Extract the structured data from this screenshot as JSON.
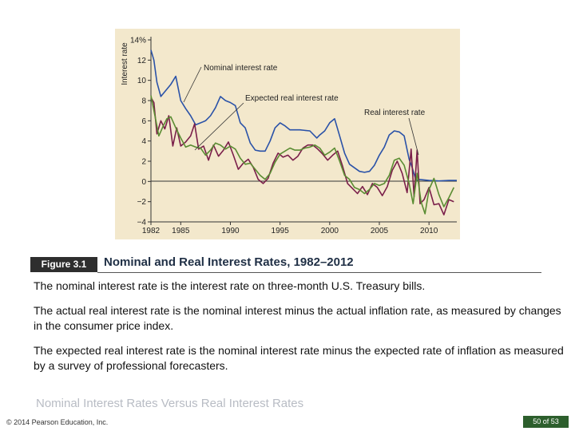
{
  "figure": {
    "label": "Figure 3.1",
    "title": "Nominal and Real Interest Rates, 1982–2012",
    "paragraphs": [
      "The nominal interest rate is the interest rate on three-month U.S. Treasury bills.",
      "The actual real interest rate is the nominal interest minus the actual inflation rate, as measured by changes in the consumer price index.",
      "The expected real interest rate is the nominal interest rate minus the expected rate of inflation as measured by a survey of professional forecasters."
    ]
  },
  "slide": {
    "subtitle": "Nominal Interest Rates Versus Real Interest Rates",
    "copyright": "© 2014 Pearson Education, Inc.",
    "page": "50 of 53"
  },
  "chart_data": {
    "type": "line",
    "ylabel": "Interest rate",
    "ylim": [
      -4,
      14
    ],
    "xlim": [
      1982,
      2012.8
    ],
    "y_ticks": [
      "−4",
      "−2",
      "0",
      "2",
      "4",
      "6",
      "8",
      "10",
      "12",
      "14%"
    ],
    "y_tick_values": [
      -4,
      -2,
      0,
      2,
      4,
      6,
      8,
      10,
      12,
      14
    ],
    "x_ticks": [
      "1982",
      "1985",
      "1990",
      "1995",
      "2000",
      "2005",
      "2010"
    ],
    "x_tick_values": [
      1982,
      1985,
      1990,
      1995,
      2000,
      2005,
      2010
    ],
    "grid": false,
    "background": "#f3e8cc",
    "annotations": [
      "Nominal interest rate",
      "Expected real interest rate",
      "Real interest rate"
    ],
    "series": [
      {
        "name": "Nominal interest rate",
        "color": "#2a52a8",
        "x": [
          1982,
          1982.3,
          1982.6,
          1983,
          1983.5,
          1984,
          1984.5,
          1985,
          1985.5,
          1986,
          1986.5,
          1987,
          1987.5,
          1988,
          1988.5,
          1989,
          1989.5,
          1990,
          1990.5,
          1991,
          1991.5,
          1992,
          1992.5,
          1993,
          1993.5,
          1994,
          1994.5,
          1995,
          1995.5,
          1996,
          1997,
          1998,
          1998.7,
          1999,
          1999.5,
          2000,
          2000.5,
          2001,
          2001.5,
          2002,
          2003,
          2003.5,
          2004,
          2004.5,
          2005,
          2005.5,
          2006,
          2006.5,
          2007,
          2007.5,
          2008,
          2008.3,
          2008.7,
          2009,
          2010,
          2011,
          2012,
          2012.8
        ],
        "y": [
          13,
          12,
          9.8,
          8.4,
          9,
          9.6,
          10.4,
          8,
          7.2,
          6.5,
          5.6,
          5.8,
          6,
          6.5,
          7.3,
          8.4,
          8,
          7.8,
          7.5,
          5.8,
          5.3,
          3.8,
          3.1,
          3,
          3,
          4,
          5.3,
          5.8,
          5.5,
          5.1,
          5.1,
          5,
          4.3,
          4.6,
          5,
          5.8,
          6.2,
          4.5,
          2.8,
          1.7,
          1,
          0.9,
          1,
          1.6,
          2.6,
          3.4,
          4.6,
          5,
          4.9,
          4.5,
          2.2,
          1.4,
          0.1,
          0.2,
          0.1,
          0.05,
          0.1,
          0.1
        ]
      },
      {
        "name": "Real interest rate",
        "color": "#7a1f4a",
        "x": [
          1982,
          1982.3,
          1982.6,
          1983,
          1983.4,
          1983.8,
          1984.2,
          1984.6,
          1985,
          1985.5,
          1986,
          1986.4,
          1986.8,
          1987.3,
          1987.8,
          1988.3,
          1988.8,
          1989.3,
          1989.8,
          1990.3,
          1990.8,
          1991.3,
          1991.8,
          1992.3,
          1992.8,
          1993.3,
          1993.8,
          1994.3,
          1994.8,
          1995.3,
          1995.8,
          1996.3,
          1996.8,
          1997.3,
          1997.8,
          1998.3,
          1998.8,
          1999.3,
          1999.8,
          2000.3,
          2000.8,
          2001.3,
          2001.8,
          2002.3,
          2002.8,
          2003.3,
          2003.8,
          2004.3,
          2004.8,
          2005.3,
          2005.8,
          2006.3,
          2006.8,
          2007.3,
          2007.8,
          2008.2,
          2008.5,
          2008.8,
          2009.1,
          2009.5,
          2010,
          2010.5,
          2011,
          2011.5,
          2012,
          2012.5
        ],
        "y": [
          8.3,
          7.8,
          4.7,
          6,
          5.2,
          6.5,
          3.5,
          5.3,
          3.5,
          3.9,
          4.5,
          5.7,
          3.2,
          3.5,
          2.1,
          3.6,
          2.5,
          3.1,
          3.9,
          2.6,
          1.2,
          1.8,
          2.2,
          1.4,
          0.2,
          -0.2,
          0.3,
          1.8,
          2.8,
          2.4,
          2.6,
          2.1,
          2.5,
          3.3,
          3.6,
          3.6,
          3.2,
          2.7,
          2.1,
          2.6,
          3,
          1.5,
          -0.2,
          -0.7,
          -1.2,
          -0.5,
          -1.3,
          -0.2,
          -0.6,
          -1.4,
          -0.5,
          1.1,
          2,
          0.8,
          -1.1,
          3.2,
          -1.5,
          3.1,
          -2.2,
          -1.8,
          -0.6,
          -2.3,
          -2.2,
          -3.3,
          -1.8,
          -2
        ]
      },
      {
        "name": "Expected real interest rate",
        "color": "#5a8c32",
        "x": [
          1982,
          1982.4,
          1982.8,
          1983.2,
          1983.6,
          1984,
          1984.5,
          1985,
          1985.5,
          1986,
          1986.5,
          1987,
          1987.5,
          1988,
          1988.5,
          1989,
          1989.5,
          1990,
          1990.5,
          1991,
          1991.5,
          1992,
          1992.5,
          1993,
          1993.5,
          1994,
          1994.5,
          1995,
          1995.5,
          1996,
          1996.5,
          1997,
          1997.5,
          1998,
          1998.5,
          1999,
          1999.5,
          2000,
          2000.5,
          2001,
          2001.5,
          2002,
          2002.5,
          2003,
          2003.5,
          2004,
          2004.5,
          2005,
          2005.5,
          2006,
          2006.5,
          2007,
          2007.5,
          2008,
          2008.4,
          2008.8,
          2009.2,
          2009.6,
          2010,
          2010.5,
          2011,
          2011.5,
          2012,
          2012.5
        ],
        "y": [
          8.5,
          6.5,
          4.5,
          5.4,
          6.2,
          6.4,
          5.3,
          4.3,
          3.4,
          3.6,
          3.4,
          3.3,
          2.6,
          3.1,
          3.8,
          3.6,
          3.2,
          3.5,
          3.2,
          2.3,
          1.7,
          1.8,
          1.2,
          0.6,
          0.2,
          0.8,
          1.9,
          2.7,
          3,
          3.3,
          3.1,
          3.1,
          3.3,
          3.4,
          3.6,
          3.3,
          2.6,
          2.9,
          3.3,
          2,
          0.6,
          0.2,
          -0.6,
          -0.8,
          -1.2,
          -0.8,
          -0.2,
          -0.4,
          -0.2,
          0.6,
          2.1,
          2.3,
          1.6,
          -0.2,
          -2.2,
          0.8,
          -2,
          -3.2,
          -0.8,
          0.3,
          -1.3,
          -2.5,
          -1.6,
          -0.6
        ]
      }
    ]
  }
}
